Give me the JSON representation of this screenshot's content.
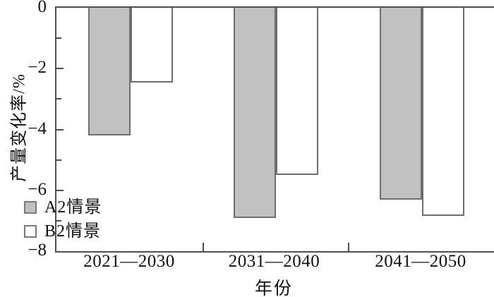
{
  "figure": {
    "background": "#ffffff",
    "text_color": "#111111",
    "axis_color": "#4f4f4f",
    "bar_border_color": "#6e6e6e"
  },
  "chart_data": {
    "type": "bar",
    "orientation": "vertical-negative",
    "title": "",
    "xlabel": "年份",
    "ylabel": "产量变化率/%",
    "categories": [
      "2021—2030",
      "2031—2040",
      "2041—2050"
    ],
    "series": [
      {
        "name": "A2情景",
        "fill": "#c1c1c1",
        "values": [
          -4.2,
          -6.9,
          -6.3
        ]
      },
      {
        "name": "B2情景",
        "fill": "#ffffff",
        "values": [
          -2.45,
          -5.5,
          -6.85
        ]
      }
    ],
    "ylim": [
      -8,
      0
    ],
    "yticks_major": [
      {
        "value": 0,
        "label": "0"
      },
      {
        "value": -2,
        "label": "−2"
      },
      {
        "value": -4,
        "label": "−4"
      },
      {
        "value": -6,
        "label": "−6"
      },
      {
        "value": -8,
        "label": "−8"
      }
    ],
    "yticks_minor": [
      -1,
      -3,
      -5,
      -7
    ],
    "grid": false,
    "legend_position": "lower-left"
  }
}
